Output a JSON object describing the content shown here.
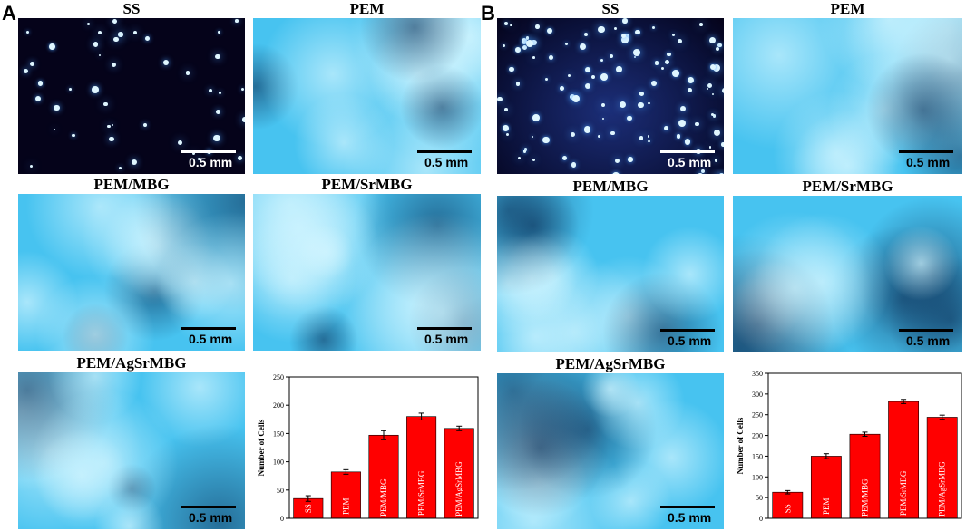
{
  "panels": [
    {
      "letter": "A",
      "images": [
        {
          "title": "SS",
          "scale": "0.5 mm",
          "style": "dark"
        },
        {
          "title": "PEM",
          "scale": "0.5 mm",
          "style": "blue"
        },
        {
          "title": "PEM/MBG",
          "scale": "0.5 mm",
          "style": "blue"
        },
        {
          "title": "PEM/SrMBG",
          "scale": "0.5 mm",
          "style": "blue"
        },
        {
          "title": "PEM/AgSrMBG",
          "scale": "0.5 mm",
          "style": "blue"
        }
      ]
    },
    {
      "letter": "B",
      "images": [
        {
          "title": "SS",
          "scale": "0.5 mm",
          "style": "dark"
        },
        {
          "title": "PEM",
          "scale": "0.5 mm",
          "style": "blue"
        },
        {
          "title": "PEM/MBG",
          "scale": "0.5 mm",
          "style": "blue"
        },
        {
          "title": "PEM/SrMBG",
          "scale": "0.5 mm",
          "style": "blue"
        },
        {
          "title": "PEM/AgSrMBG",
          "scale": "0.5 mm",
          "style": "blue"
        }
      ]
    }
  ],
  "colors": {
    "bar": "#ff0000",
    "dark_bg": "#05031a",
    "blue_bg": "#47c3f0"
  },
  "chart_data": [
    {
      "type": "bar",
      "categories": [
        "SS",
        "PEM",
        "PEM/MBG",
        "PEM/SrMBG",
        "PEM/AgSrMBG"
      ],
      "values": [
        35,
        82,
        147,
        180,
        159
      ],
      "errors": [
        5,
        4,
        8,
        6,
        4
      ],
      "ylabel": "Number of Cells",
      "ylim": [
        0,
        250
      ],
      "yticks": [
        0,
        50,
        100,
        150,
        200,
        250
      ]
    },
    {
      "type": "bar",
      "categories": [
        "SS",
        "PEM",
        "PEM/MBG",
        "PEM/SrMBG",
        "PEM/AgSrMBG"
      ],
      "values": [
        63,
        150,
        203,
        282,
        244
      ],
      "errors": [
        4,
        6,
        5,
        5,
        5
      ],
      "ylabel": "Number of Cells",
      "ylim": [
        0,
        350
      ],
      "yticks": [
        0,
        50,
        100,
        150,
        200,
        250,
        300,
        350
      ]
    }
  ]
}
